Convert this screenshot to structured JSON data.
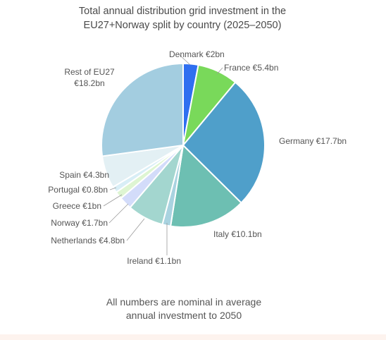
{
  "chart_data": {
    "type": "pie",
    "title_lines": [
      "Total annual distribution grid investment in the",
      "EU27+Norway split by country (2025–2050)"
    ],
    "unit": "€bn",
    "slices": [
      {
        "label": "Denmark €2bn",
        "value": 2.0,
        "color": "#2f6ff0"
      },
      {
        "label": "France €5.4bn",
        "value": 5.4,
        "color": "#79d95a"
      },
      {
        "label": "Germany €17.7bn",
        "value": 17.7,
        "color": "#4f9fca"
      },
      {
        "label": "Italy €10.1bn",
        "value": 10.1,
        "color": "#6dbfb2"
      },
      {
        "label": "Ireland €1.1bn",
        "value": 1.1,
        "color": "#a9d3e0"
      },
      {
        "label": "Netherlands €4.8bn",
        "value": 4.8,
        "color": "#a3d6cf"
      },
      {
        "label": "Norway €1.7bn",
        "value": 1.7,
        "color": "#d3dcfa"
      },
      {
        "label": "Greece €1bn",
        "value": 1.0,
        "color": "#def5d2"
      },
      {
        "label": "Portugal €0.8bn",
        "value": 0.8,
        "color": "#d8eef6"
      },
      {
        "label": "Spain €4.3bn",
        "value": 4.3,
        "color": "#e3f0f4"
      },
      {
        "label_lines": [
          "Rest of EU27",
          "€18.2bn"
        ],
        "value": 18.2,
        "color": "#a3cde0"
      }
    ],
    "legend": "none"
  },
  "footnote_lines": [
    "All numbers are nominal in average",
    "annual investment to 2050"
  ]
}
